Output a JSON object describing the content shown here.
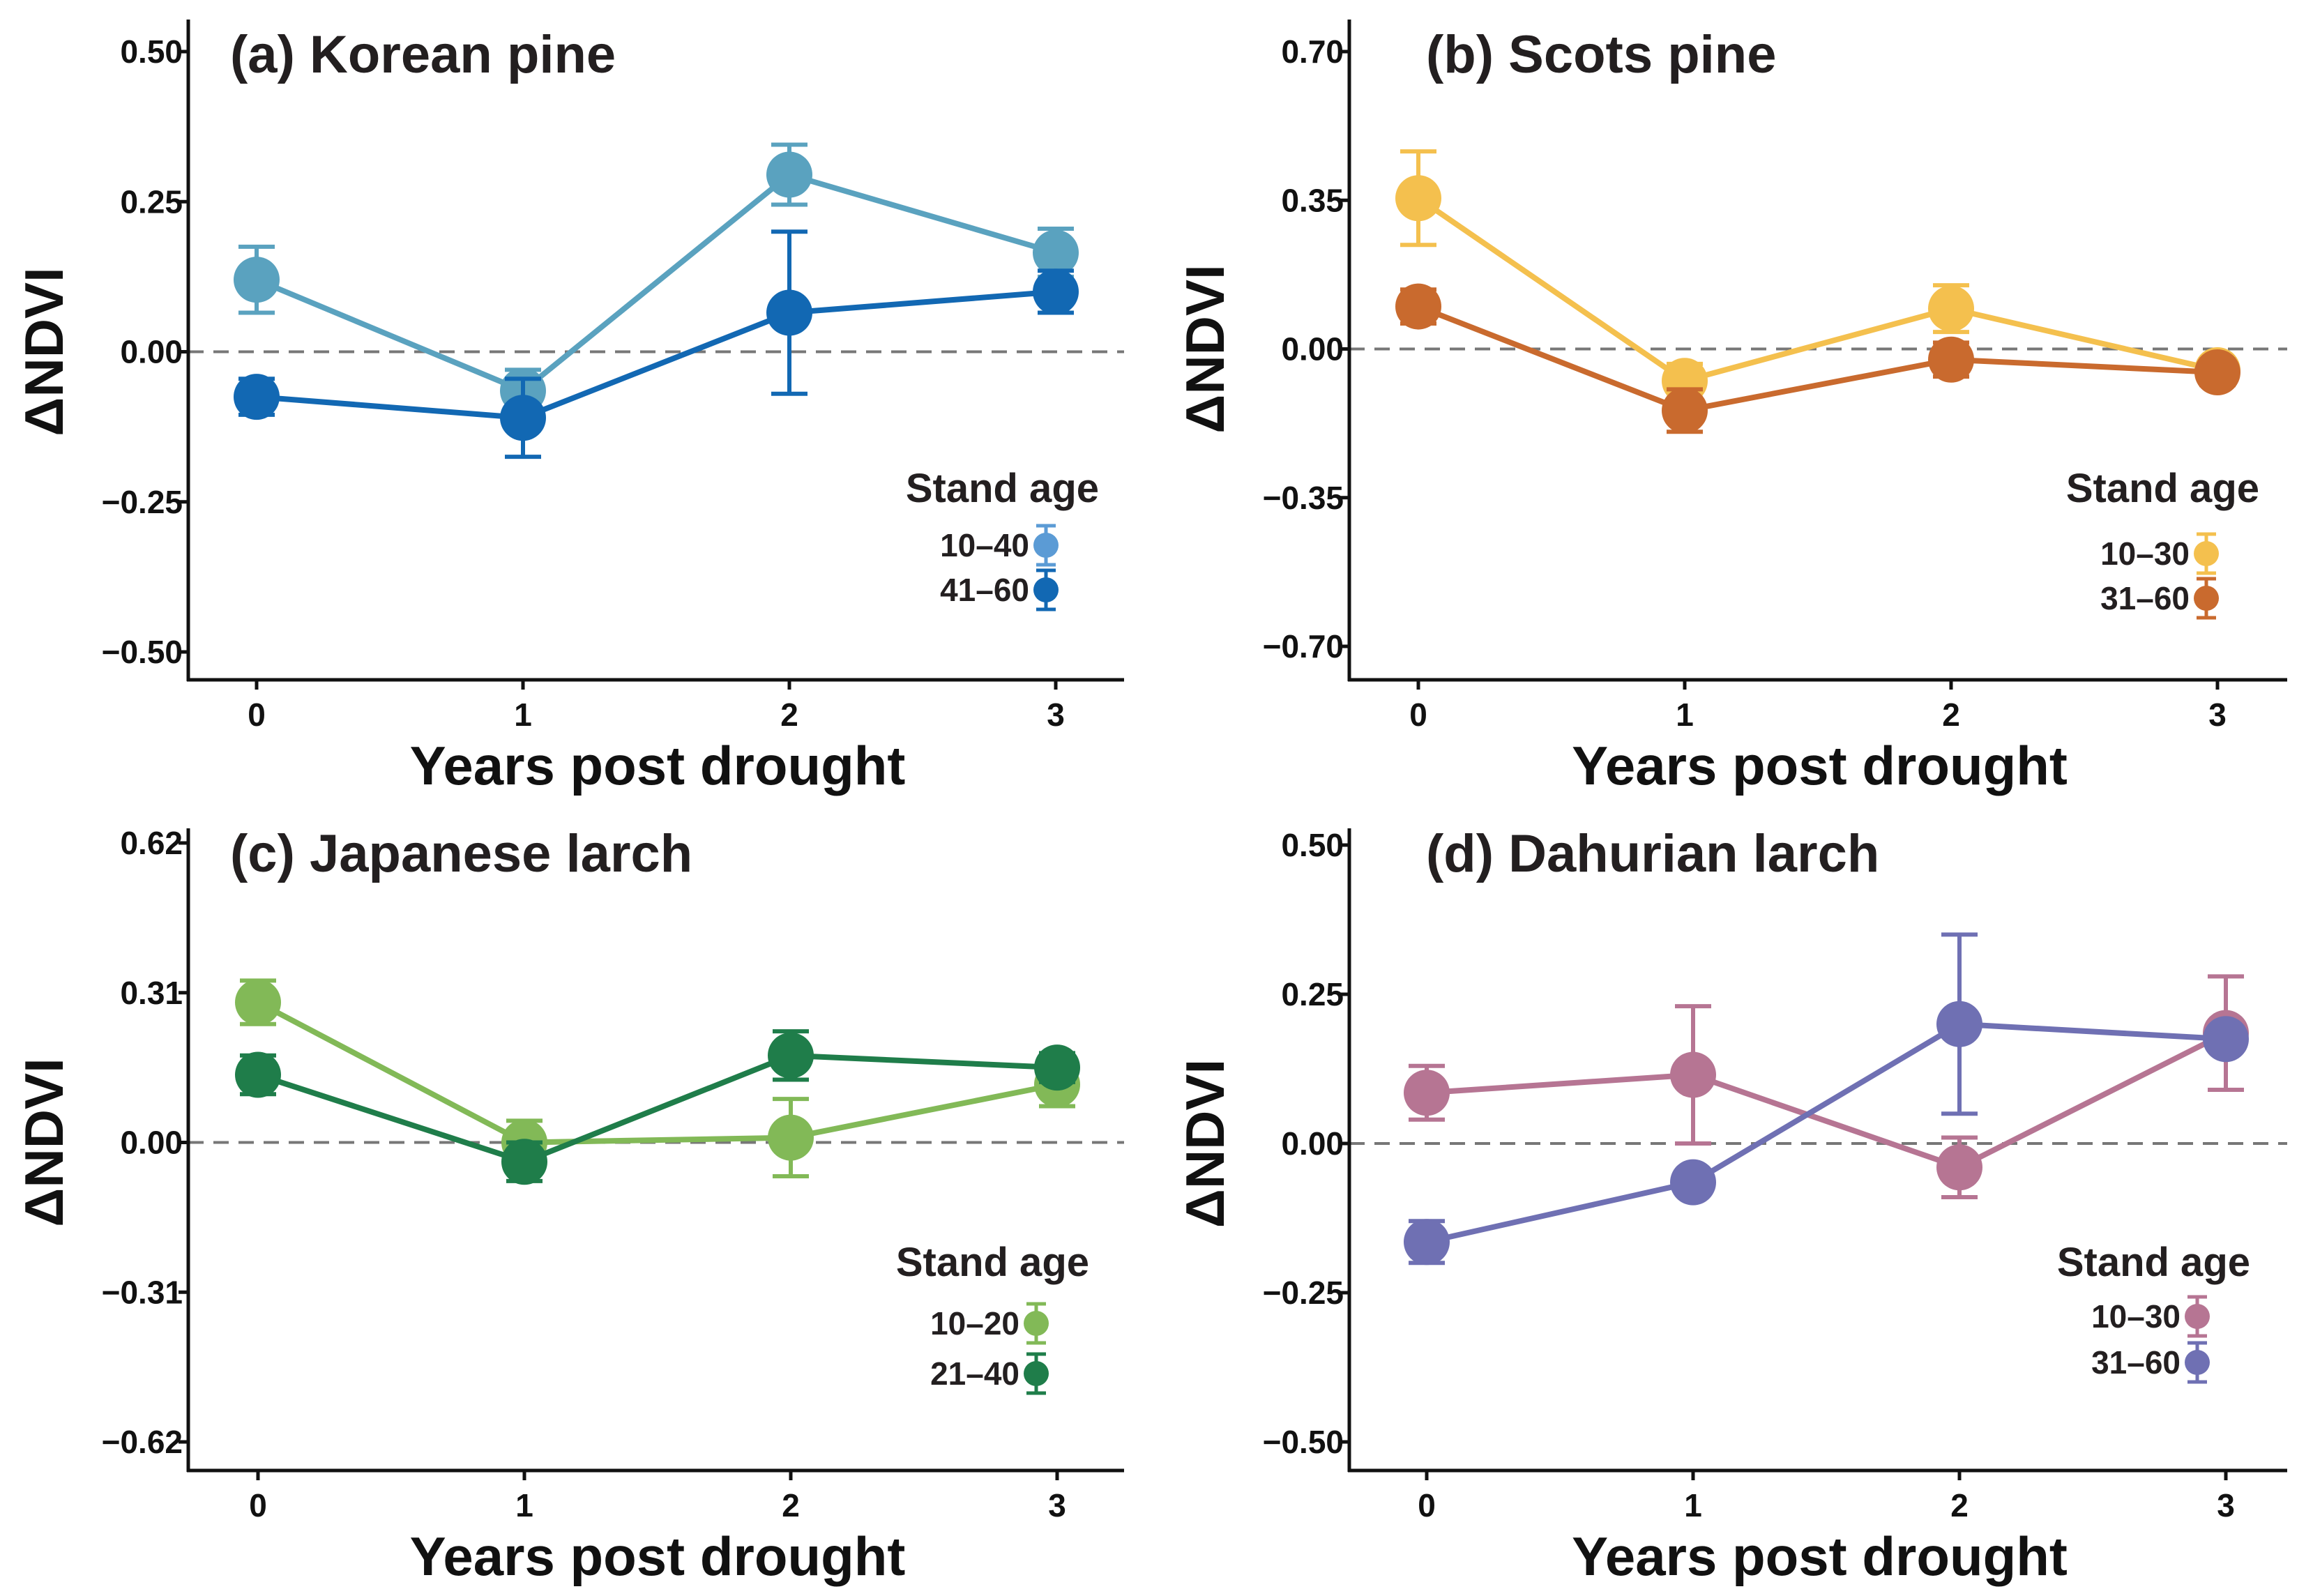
{
  "chart_data": [
    {
      "type": "line",
      "panel": "a",
      "title": "(a) Korean pine",
      "xlabel": "Years post drought",
      "ylabel": "ΔNDVI",
      "x": [
        0,
        1,
        2,
        3
      ],
      "x_tick_labels": [
        "0",
        "1",
        "2",
        "3"
      ],
      "ylim": [
        -0.5,
        0.5
      ],
      "y_ticks": [
        0.5,
        0.25,
        0.0,
        -0.25,
        -0.5
      ],
      "y_tick_labels": [
        "0.50",
        "0.25",
        "0.00",
        "−0.25",
        "−0.50"
      ],
      "reference_line": 0,
      "legend_title": "Stand age",
      "series": [
        {
          "name": "10–40",
          "color": "#5aa2bf",
          "legend_color": "#5b9bd5",
          "values": [
            0.12,
            -0.065,
            0.295,
            0.165
          ],
          "err": [
            0.055,
            0.035,
            0.05,
            0.04
          ]
        },
        {
          "name": "41–60",
          "color": "#1268b3",
          "legend_color": "#1268b3",
          "values": [
            -0.075,
            -0.11,
            0.065,
            0.1
          ],
          "err": [
            0.03,
            0.065,
            0.135,
            0.035
          ]
        }
      ]
    },
    {
      "type": "line",
      "panel": "b",
      "title": "(b) Scots pine",
      "xlabel": "Years post drought",
      "ylabel": "ΔNDVI",
      "x": [
        0,
        1,
        2,
        3
      ],
      "x_tick_labels": [
        "0",
        "1",
        "2",
        "3"
      ],
      "ylim": [
        -0.7,
        0.7
      ],
      "y_ticks": [
        0.7,
        0.35,
        0.0,
        -0.35,
        -0.7
      ],
      "y_tick_labels": [
        "0.70",
        "0.35",
        "0.00",
        "−0.35",
        "−0.70"
      ],
      "reference_line": 0,
      "legend_title": "Stand age",
      "series": [
        {
          "name": "10–30",
          "color": "#f4c04e",
          "legend_color": "#f4c04e",
          "values": [
            0.355,
            -0.075,
            0.095,
            -0.05
          ],
          "err": [
            0.11,
            0.04,
            0.055,
            0.025
          ]
        },
        {
          "name": "31–60",
          "color": "#c96a2e",
          "legend_color": "#c96a2e",
          "values": [
            0.1,
            -0.145,
            -0.025,
            -0.055
          ],
          "err": [
            0.04,
            0.05,
            0.04,
            0.03
          ]
        }
      ]
    },
    {
      "type": "line",
      "panel": "c",
      "title": "(c) Japanese larch",
      "xlabel": "Years post drought",
      "ylabel": "ΔNDVI",
      "x": [
        0,
        1,
        2,
        3
      ],
      "x_tick_labels": [
        "0",
        "1",
        "2",
        "3"
      ],
      "ylim": [
        -0.62,
        0.62
      ],
      "y_ticks": [
        0.62,
        0.31,
        0.0,
        -0.31,
        -0.62
      ],
      "y_tick_labels": [
        "0.62",
        "0.31",
        "0.00",
        "−0.31",
        "−0.62"
      ],
      "reference_line": 0,
      "legend_title": "Stand age",
      "series": [
        {
          "name": "10–20",
          "color": "#82b957",
          "legend_color": "#82b957",
          "values": [
            0.29,
            0.0,
            0.01,
            0.12
          ],
          "err": [
            0.045,
            0.045,
            0.08,
            0.045
          ]
        },
        {
          "name": "21–40",
          "color": "#1f7d4a",
          "legend_color": "#1f7d4a",
          "values": [
            0.14,
            -0.04,
            0.18,
            0.155
          ],
          "err": [
            0.04,
            0.04,
            0.05,
            0.03
          ]
        }
      ]
    },
    {
      "type": "line",
      "panel": "d",
      "title": "(d) Dahurian larch",
      "xlabel": "Years post drought",
      "ylabel": "ΔNDVI",
      "x": [
        0,
        1,
        2,
        3
      ],
      "x_tick_labels": [
        "0",
        "1",
        "2",
        "3"
      ],
      "ylim": [
        -0.5,
        0.5
      ],
      "y_ticks": [
        0.5,
        0.25,
        0.0,
        -0.25,
        -0.5
      ],
      "y_tick_labels": [
        "0.50",
        "0.25",
        "0.00",
        "−0.25",
        "−0.50"
      ],
      "reference_line": 0,
      "legend_title": "Stand age",
      "series": [
        {
          "name": "10–30",
          "color": "#b67593",
          "legend_color": "#b67593",
          "values": [
            0.085,
            0.115,
            -0.04,
            0.185
          ],
          "err": [
            0.045,
            0.115,
            0.05,
            0.095
          ]
        },
        {
          "name": "31–60",
          "color": "#6f70b3",
          "legend_color": "#6f70b3",
          "values": [
            -0.165,
            -0.065,
            0.2,
            0.175
          ],
          "err": [
            0.035,
            0.02,
            0.15,
            0.02
          ]
        }
      ]
    }
  ]
}
